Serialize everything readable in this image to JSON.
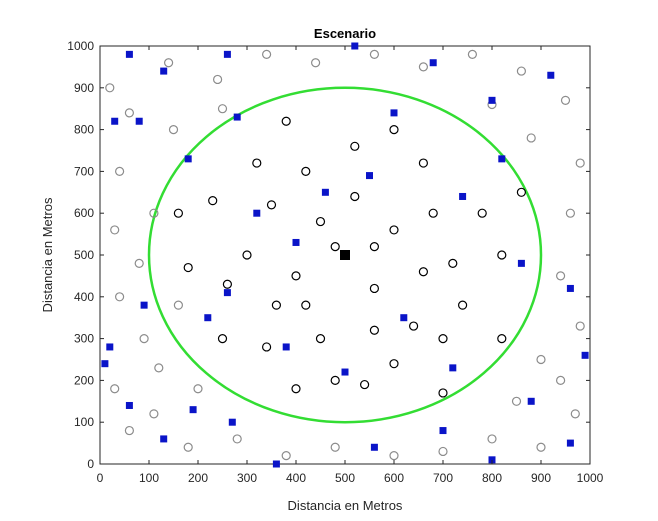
{
  "chart_data": {
    "type": "scatter",
    "title": "Escenario",
    "xlabel": "Distancia en Metros",
    "ylabel": "Distancia en Metros",
    "xlim": [
      0,
      1000
    ],
    "ylim": [
      0,
      1000
    ],
    "xticks": [
      0,
      100,
      200,
      300,
      400,
      500,
      600,
      700,
      800,
      900,
      1000
    ],
    "yticks": [
      0,
      100,
      200,
      300,
      400,
      500,
      600,
      700,
      800,
      900,
      1000
    ],
    "grid": false,
    "legend": "none",
    "colors": {
      "boundary": "#33dd33",
      "inside": "#000000",
      "outside": "#8c8c8c",
      "selected": "#0a14c8",
      "center": "#000000"
    },
    "circle": {
      "cx": 500,
      "cy": 500,
      "r": 400
    },
    "center_point": {
      "x": 500,
      "y": 500
    },
    "series": [
      {
        "marker": "hollow-circle-black",
        "points": [
          [
            300,
            500
          ],
          [
            420,
            700
          ],
          [
            520,
            640
          ],
          [
            600,
            560
          ],
          [
            360,
            380
          ],
          [
            450,
            300
          ],
          [
            560,
            420
          ],
          [
            640,
            330
          ],
          [
            720,
            480
          ],
          [
            230,
            630
          ],
          [
            340,
            280
          ],
          [
            480,
            200
          ],
          [
            600,
            240
          ],
          [
            700,
            300
          ],
          [
            780,
            600
          ],
          [
            260,
            430
          ],
          [
            400,
            450
          ],
          [
            520,
            760
          ],
          [
            660,
            720
          ],
          [
            740,
            380
          ],
          [
            180,
            470
          ],
          [
            320,
            720
          ],
          [
            560,
            320
          ],
          [
            680,
            600
          ],
          [
            450,
            580
          ],
          [
            380,
            820
          ],
          [
            600,
            800
          ],
          [
            820,
            500
          ],
          [
            250,
            300
          ],
          [
            540,
            190
          ],
          [
            700,
            170
          ],
          [
            400,
            180
          ],
          [
            820,
            300
          ],
          [
            160,
            600
          ],
          [
            860,
            650
          ],
          [
            480,
            520
          ],
          [
            560,
            520
          ],
          [
            660,
            460
          ],
          [
            350,
            620
          ],
          [
            420,
            380
          ]
        ]
      },
      {
        "marker": "hollow-circle-gray",
        "points": [
          [
            20,
            900
          ],
          [
            60,
            840
          ],
          [
            40,
            700
          ],
          [
            30,
            560
          ],
          [
            80,
            480
          ],
          [
            40,
            400
          ],
          [
            90,
            300
          ],
          [
            30,
            180
          ],
          [
            60,
            80
          ],
          [
            140,
            960
          ],
          [
            240,
            920
          ],
          [
            340,
            980
          ],
          [
            440,
            960
          ],
          [
            560,
            980
          ],
          [
            660,
            950
          ],
          [
            760,
            980
          ],
          [
            860,
            940
          ],
          [
            950,
            870
          ],
          [
            980,
            720
          ],
          [
            960,
            600
          ],
          [
            940,
            450
          ],
          [
            980,
            330
          ],
          [
            940,
            200
          ],
          [
            970,
            120
          ],
          [
            900,
            40
          ],
          [
            800,
            60
          ],
          [
            700,
            30
          ],
          [
            600,
            20
          ],
          [
            480,
            40
          ],
          [
            380,
            20
          ],
          [
            280,
            60
          ],
          [
            180,
            40
          ],
          [
            110,
            120
          ],
          [
            200,
            180
          ],
          [
            120,
            230
          ],
          [
            150,
            800
          ],
          [
            250,
            850
          ],
          [
            800,
            860
          ],
          [
            880,
            780
          ],
          [
            900,
            250
          ],
          [
            850,
            150
          ],
          [
            160,
            380
          ],
          [
            110,
            600
          ]
        ]
      },
      {
        "marker": "filled-square-blue",
        "points": [
          [
            60,
            980
          ],
          [
            130,
            940
          ],
          [
            260,
            980
          ],
          [
            520,
            1000
          ],
          [
            680,
            960
          ],
          [
            800,
            870
          ],
          [
            920,
            930
          ],
          [
            30,
            820
          ],
          [
            80,
            820
          ],
          [
            180,
            730
          ],
          [
            280,
            830
          ],
          [
            460,
            650
          ],
          [
            550,
            690
          ],
          [
            320,
            600
          ],
          [
            220,
            350
          ],
          [
            620,
            350
          ],
          [
            720,
            230
          ],
          [
            860,
            480
          ],
          [
            960,
            420
          ],
          [
            990,
            260
          ],
          [
            880,
            150
          ],
          [
            960,
            50
          ],
          [
            800,
            10
          ],
          [
            700,
            80
          ],
          [
            560,
            40
          ],
          [
            360,
            0
          ],
          [
            270,
            100
          ],
          [
            190,
            130
          ],
          [
            130,
            60
          ],
          [
            60,
            140
          ],
          [
            20,
            280
          ],
          [
            10,
            240
          ],
          [
            90,
            380
          ],
          [
            260,
            410
          ],
          [
            400,
            530
          ],
          [
            380,
            280
          ],
          [
            500,
            220
          ],
          [
            740,
            640
          ],
          [
            820,
            730
          ],
          [
            600,
            840
          ]
        ]
      }
    ]
  }
}
